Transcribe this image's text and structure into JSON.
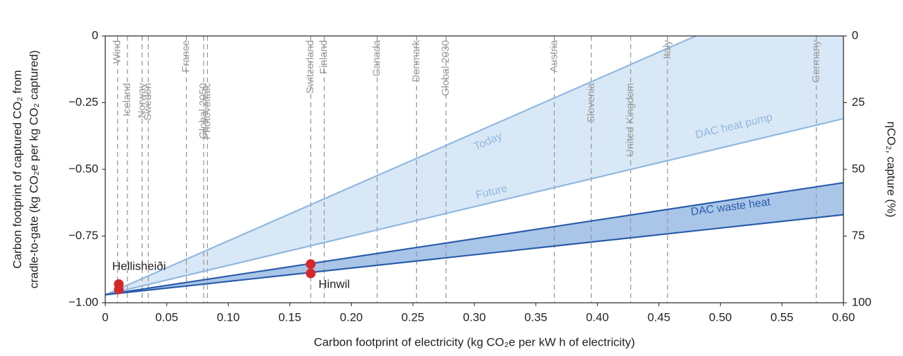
{
  "chart_data": {
    "type": "line",
    "xlabel": "Carbon footprint of electricity (kg CO₂e per kW h of electricity)",
    "ylabel": [
      "Carbon footprint of captured CO₂ from",
      "cradle-to-gate (kg CO₂e per kg CO₂ captured)"
    ],
    "y2label": "ηCO₂, capture (%)",
    "xlim": [
      0,
      0.6
    ],
    "ylim": [
      -1,
      0
    ],
    "y2lim": [
      100,
      0
    ],
    "xticks": [
      0,
      0.05,
      {
        "value": 0.1,
        "label": "0.10"
      },
      0.15,
      {
        "value": 0.2,
        "label": "0.20"
      },
      0.25,
      {
        "value": 0.3,
        "label": "0.30"
      },
      0.35,
      {
        "value": 0.4,
        "label": "0.40"
      },
      0.45,
      {
        "value": 0.5,
        "label": "0.50"
      },
      0.55,
      {
        "value": 0.6,
        "label": "0.60"
      }
    ],
    "yticks": [
      0,
      {
        "value": -0.25,
        "label": "−0.25"
      },
      {
        "value": -0.5,
        "label": "−0.50"
      },
      {
        "value": -0.75,
        "label": "−0.75"
      },
      {
        "value": -1,
        "label": "−1.00"
      }
    ],
    "y2ticks": [
      0,
      25,
      50,
      75,
      100
    ],
    "series": [
      {
        "name": "Today",
        "color": "#8fb8e0",
        "x": [
          0,
          0.48
        ],
        "values": [
          -0.97,
          0
        ]
      },
      {
        "name": "Future",
        "color": "#8fb8e0",
        "x": [
          0,
          0.6
        ],
        "values": [
          -0.97,
          -0.31
        ]
      },
      {
        "color": "#2a5caa",
        "x": [
          0,
          0.6
        ],
        "values": [
          -0.97,
          -0.55
        ]
      },
      {
        "color": "#2a5caa",
        "x": [
          0,
          0.6
        ],
        "values": [
          -0.97,
          -0.67
        ]
      }
    ],
    "bands": [
      {
        "name": "DAC heat pump",
        "color": "#d9e8f6"
      },
      {
        "name": "DAC waste heat",
        "color": "#a9c6e8"
      }
    ],
    "points": [
      {
        "name": "Hellisheiði",
        "color": "#d62828",
        "x": [
          0.011,
          0.011
        ],
        "values": [
          -0.93,
          -0.95
        ]
      },
      {
        "name": "Hinwil",
        "color": "#d62828",
        "x": [
          0.167,
          0.167
        ],
        "values": [
          -0.855,
          -0.89
        ]
      }
    ],
    "references": [
      {
        "name": "Wind",
        "x": 0.01
      },
      {
        "name": "Iceland",
        "x": 0.018
      },
      {
        "name": "Norway",
        "x": 0.03
      },
      {
        "name": "Sweden",
        "x": 0.035
      },
      {
        "name": "France",
        "x": 0.066
      },
      {
        "name": "Global 2050",
        "x": 0.08
      },
      {
        "name": "Photovoltaic",
        "x": 0.083
      },
      {
        "name": "Switzerland",
        "x": 0.167
      },
      {
        "name": "Finland",
        "x": 0.178
      },
      {
        "name": "Canada",
        "x": 0.221
      },
      {
        "name": "Denmark",
        "x": 0.253
      },
      {
        "name": "Global 2030",
        "x": 0.277
      },
      {
        "name": "Austria",
        "x": 0.365
      },
      {
        "name": "Slovenia",
        "x": 0.395
      },
      {
        "name": "United Kingdom",
        "x": 0.427
      },
      {
        "name": "Italy",
        "x": 0.457
      },
      {
        "name": "Germany",
        "x": 0.578
      }
    ]
  }
}
